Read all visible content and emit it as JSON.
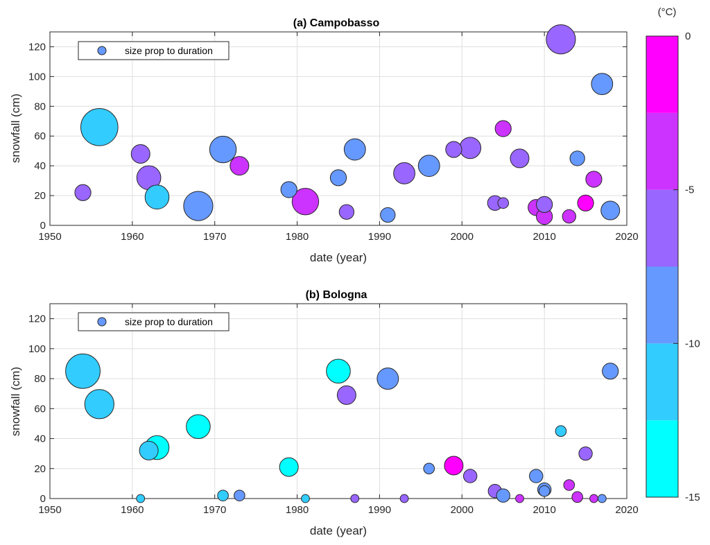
{
  "chart_data": [
    {
      "type": "scatter",
      "title": "(a) Campobasso",
      "xlabel": "date (year)",
      "ylabel": "snowfall (cm)",
      "xlim": [
        1950,
        2020
      ],
      "ylim": [
        0,
        130
      ],
      "xticks": [
        1950,
        1960,
        1970,
        1980,
        1990,
        2000,
        2010,
        2020
      ],
      "yticks": [
        0,
        20,
        40,
        60,
        80,
        100,
        120
      ],
      "grid": true,
      "legend": {
        "label": "size prop to duration",
        "position": "top-left"
      },
      "points": [
        {
          "x": 1954,
          "y": 22,
          "temp": -7,
          "size": 4
        },
        {
          "x": 1956,
          "y": 66,
          "temp": -11,
          "size": 12
        },
        {
          "x": 1961,
          "y": 48,
          "temp": -7,
          "size": 5
        },
        {
          "x": 1962,
          "y": 32,
          "temp": -7,
          "size": 7
        },
        {
          "x": 1963,
          "y": 19,
          "temp": -11,
          "size": 7
        },
        {
          "x": 1968,
          "y": 13,
          "temp": -9,
          "size": 9
        },
        {
          "x": 1971,
          "y": 51,
          "temp": -9,
          "size": 8
        },
        {
          "x": 1973,
          "y": 40,
          "temp": -4,
          "size": 5
        },
        {
          "x": 1979,
          "y": 24,
          "temp": -9,
          "size": 4
        },
        {
          "x": 1981,
          "y": 16,
          "temp": -4,
          "size": 8
        },
        {
          "x": 1985,
          "y": 32,
          "temp": -9,
          "size": 4
        },
        {
          "x": 1986,
          "y": 9,
          "temp": -7,
          "size": 3.5
        },
        {
          "x": 1987,
          "y": 51,
          "temp": -9,
          "size": 6
        },
        {
          "x": 1991,
          "y": 7,
          "temp": -9,
          "size": 3.5
        },
        {
          "x": 1993,
          "y": 35,
          "temp": -7,
          "size": 6
        },
        {
          "x": 1996,
          "y": 40,
          "temp": -9,
          "size": 6
        },
        {
          "x": 1999,
          "y": 51,
          "temp": -7,
          "size": 4
        },
        {
          "x": 2001,
          "y": 52,
          "temp": -7,
          "size": 6
        },
        {
          "x": 2004,
          "y": 15,
          "temp": -7,
          "size": 3.5
        },
        {
          "x": 2005,
          "y": 15,
          "temp": -7,
          "size": 2
        },
        {
          "x": 2005,
          "y": 65,
          "temp": -4,
          "size": 4
        },
        {
          "x": 2007,
          "y": 45,
          "temp": -7,
          "size": 5
        },
        {
          "x": 2009,
          "y": 12,
          "temp": -4,
          "size": 4
        },
        {
          "x": 2010,
          "y": 6,
          "temp": -4,
          "size": 4
        },
        {
          "x": 2010,
          "y": 14,
          "temp": -7,
          "size": 4
        },
        {
          "x": 2012,
          "y": 125,
          "temp": -7,
          "size": 9
        },
        {
          "x": 2013,
          "y": 6,
          "temp": -4,
          "size": 3
        },
        {
          "x": 2014,
          "y": 45,
          "temp": -9,
          "size": 3.5
        },
        {
          "x": 2015,
          "y": 15,
          "temp": -1,
          "size": 4
        },
        {
          "x": 2016,
          "y": 31,
          "temp": -4,
          "size": 4
        },
        {
          "x": 2017,
          "y": 95,
          "temp": -9,
          "size": 6
        },
        {
          "x": 2018,
          "y": 10,
          "temp": -9,
          "size": 5
        }
      ]
    },
    {
      "type": "scatter",
      "title": "(b) Bologna",
      "xlabel": "date (year)",
      "ylabel": "snowfall (cm)",
      "xlim": [
        1950,
        2020
      ],
      "ylim": [
        0,
        130
      ],
      "xticks": [
        1950,
        1960,
        1970,
        1980,
        1990,
        2000,
        2010,
        2020
      ],
      "yticks": [
        0,
        20,
        40,
        60,
        80,
        100,
        120
      ],
      "grid": true,
      "legend": {
        "label": "size prop to duration",
        "position": "top-left"
      },
      "points": [
        {
          "x": 1954,
          "y": 85,
          "temp": -11,
          "size": 11
        },
        {
          "x": 1956,
          "y": 63,
          "temp": -11,
          "size": 9
        },
        {
          "x": 1961,
          "y": 0,
          "temp": -11,
          "size": 1
        },
        {
          "x": 1962,
          "y": 32,
          "temp": -11,
          "size": 5
        },
        {
          "x": 1963,
          "y": 34,
          "temp": -14,
          "size": 7
        },
        {
          "x": 1968,
          "y": 48,
          "temp": -14,
          "size": 7
        },
        {
          "x": 1971,
          "y": 2,
          "temp": -11,
          "size": 2
        },
        {
          "x": 1973,
          "y": 2,
          "temp": -9,
          "size": 2
        },
        {
          "x": 1979,
          "y": 21,
          "temp": -14,
          "size": 5
        },
        {
          "x": 1981,
          "y": 0,
          "temp": -11,
          "size": 1
        },
        {
          "x": 1985,
          "y": 85,
          "temp": -14,
          "size": 7
        },
        {
          "x": 1986,
          "y": 69,
          "temp": -7,
          "size": 5
        },
        {
          "x": 1987,
          "y": 0,
          "temp": -7,
          "size": 1
        },
        {
          "x": 1991,
          "y": 80,
          "temp": -9,
          "size": 6
        },
        {
          "x": 1993,
          "y": 0,
          "temp": -7,
          "size": 1
        },
        {
          "x": 1996,
          "y": 20,
          "temp": -9,
          "size": 2
        },
        {
          "x": 1999,
          "y": 22,
          "temp": -1,
          "size": 5
        },
        {
          "x": 2001,
          "y": 15,
          "temp": -7,
          "size": 3
        },
        {
          "x": 2004,
          "y": 5,
          "temp": -7,
          "size": 3
        },
        {
          "x": 2005,
          "y": 2,
          "temp": -9,
          "size": 3
        },
        {
          "x": 2007,
          "y": 0,
          "temp": -4,
          "size": 1
        },
        {
          "x": 2009,
          "y": 15,
          "temp": -9,
          "size": 3
        },
        {
          "x": 2010,
          "y": 6,
          "temp": -9,
          "size": 3
        },
        {
          "x": 2010,
          "y": 5,
          "temp": -9,
          "size": 2
        },
        {
          "x": 2012,
          "y": 45,
          "temp": -11,
          "size": 2
        },
        {
          "x": 2013,
          "y": 9,
          "temp": -4,
          "size": 2
        },
        {
          "x": 2014,
          "y": 1,
          "temp": -4,
          "size": 2
        },
        {
          "x": 2015,
          "y": 30,
          "temp": -7,
          "size": 3
        },
        {
          "x": 2016,
          "y": 0,
          "temp": -4,
          "size": 1
        },
        {
          "x": 2017,
          "y": 0,
          "temp": -9,
          "size": 1
        },
        {
          "x": 2018,
          "y": 85,
          "temp": -9,
          "size": 4
        }
      ]
    }
  ],
  "colorbar": {
    "unit": "(°C)",
    "range": [
      -15,
      0
    ],
    "ticks": [
      {
        "value": 0,
        "label": "0"
      },
      {
        "value": -5,
        "label": "-5"
      },
      {
        "value": -10,
        "label": "-10"
      },
      {
        "value": -15,
        "label": "-15"
      }
    ],
    "levels": [
      {
        "from": -15,
        "to": -12.5,
        "color": "#00FFFF"
      },
      {
        "from": -12.5,
        "to": -10,
        "color": "#33CCFF"
      },
      {
        "from": -10,
        "to": -7.5,
        "color": "#6699FF"
      },
      {
        "from": -7.5,
        "to": -5,
        "color": "#9966FF"
      },
      {
        "from": -5,
        "to": -2.5,
        "color": "#CC33FF"
      },
      {
        "from": -2.5,
        "to": 0,
        "color": "#FF00FF"
      }
    ]
  },
  "legend_marker_color": "#6699FF"
}
